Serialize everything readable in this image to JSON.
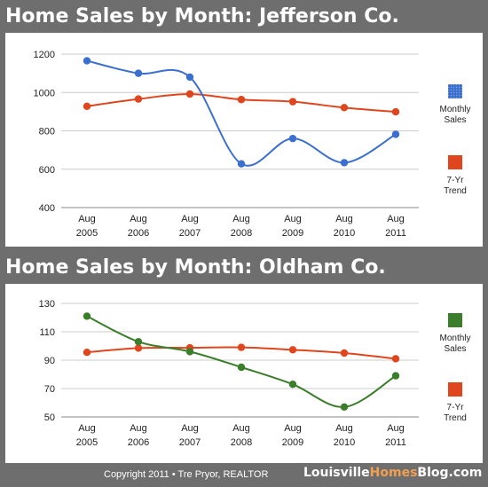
{
  "footer": {
    "copyright": "Copyright 2011 • Tre Pryor, REALTOR",
    "site_part1": "Louisville",
    "site_highlight": "Homes",
    "site_part2": "Blog.com"
  },
  "chart_data": [
    {
      "type": "line",
      "title": "Home Sales by Month: Jefferson Co.",
      "categories": [
        [
          "Aug",
          "2005"
        ],
        [
          "Aug",
          "2006"
        ],
        [
          "Aug",
          "2007"
        ],
        [
          "Aug",
          "2008"
        ],
        [
          "Aug",
          "2009"
        ],
        [
          "Aug",
          "2010"
        ],
        [
          "Aug",
          "2011"
        ]
      ],
      "ylim": [
        400,
        1200
      ],
      "yticks": [
        400,
        600,
        800,
        1000,
        1200
      ],
      "grid": true,
      "legend": "right",
      "series": [
        {
          "name": [
            "Monthly",
            "Sales"
          ],
          "color": "#3b6fcf",
          "values": [
            1165,
            1100,
            1080,
            628,
            760,
            634,
            782
          ],
          "marker": "#3b6fcf",
          "legend_pattern": true
        },
        {
          "name": [
            "7-Yr",
            "Trend"
          ],
          "color": "#e0461e",
          "values": [
            928,
            966,
            992,
            963,
            952,
            921,
            899
          ],
          "marker": "#e0461e"
        }
      ]
    },
    {
      "type": "line",
      "title": "Home Sales by Month: Oldham Co.",
      "categories": [
        [
          "Aug",
          "2005"
        ],
        [
          "Aug",
          "2006"
        ],
        [
          "Aug",
          "2007"
        ],
        [
          "Aug",
          "2008"
        ],
        [
          "Aug",
          "2009"
        ],
        [
          "Aug",
          "2010"
        ],
        [
          "Aug",
          "2011"
        ]
      ],
      "ylim": [
        50,
        130
      ],
      "yticks": [
        50,
        70,
        90,
        110,
        130
      ],
      "grid": true,
      "legend": "right",
      "series": [
        {
          "name": [
            "Monthly",
            "Sales"
          ],
          "color": "#3a7d2a",
          "values": [
            121,
            103,
            96,
            85,
            73,
            57,
            79
          ],
          "marker": "#3a7d2a"
        },
        {
          "name": [
            "7-Yr",
            "Trend"
          ],
          "color": "#e0461e",
          "values": [
            95.5,
            98.5,
            98.7,
            99,
            97.3,
            95,
            91
          ],
          "marker": "#e0461e"
        }
      ]
    }
  ]
}
